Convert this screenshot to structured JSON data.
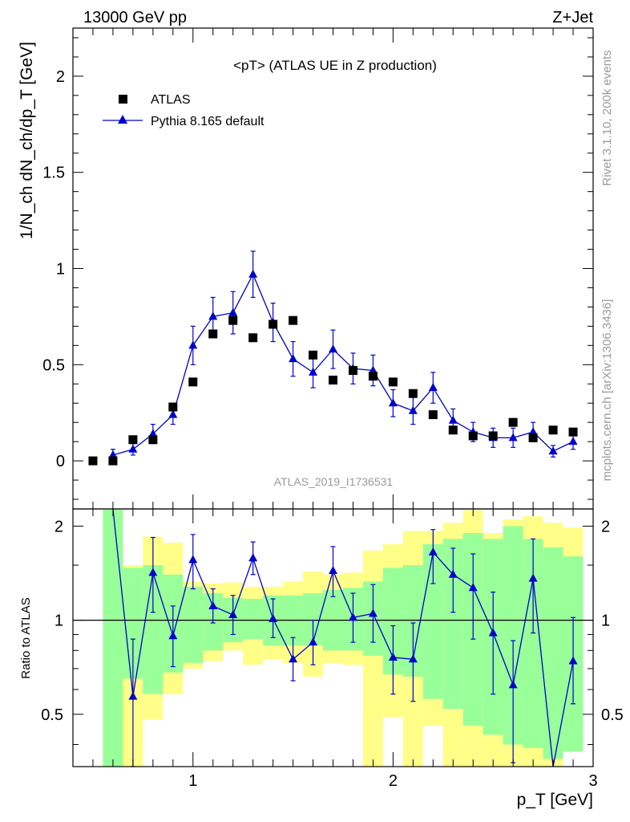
{
  "header": {
    "energy": "13000 GeV pp",
    "process": "Z+Jet"
  },
  "side_labels": {
    "rivet": "Rivet 3.1.10,  200k events",
    "mcplots": "mcplots.cern.ch [arXiv:1306.3436]"
  },
  "colors": {
    "mc": "#0000cc",
    "data": "#000000",
    "band_inner": "#99ff99",
    "band_outer": "#ffff88"
  },
  "chart_data": [
    {
      "type": "scatter",
      "title": "<pT> (ATLAS UE in Z production)",
      "analysis_id": "ATLAS_2019_I1736531",
      "ylabel": "1/N_ch dN_ch/dp_T [GeV]",
      "xlim": [
        0.4,
        3.0
      ],
      "ylim": [
        -0.25,
        2.25
      ],
      "yticks": [
        0,
        0.5,
        1,
        1.5,
        2
      ],
      "ytick_labels": [
        "0",
        "0.5",
        "1",
        "1.5",
        "2"
      ],
      "legend": {
        "placement": "top-left",
        "entries": [
          "ATLAS",
          "Pythia 8.165 default"
        ]
      },
      "series": [
        {
          "name": "ATLAS",
          "marker": "square",
          "x": [
            0.5,
            0.6,
            0.7,
            0.8,
            0.9,
            1.0,
            1.1,
            1.2,
            1.3,
            1.4,
            1.5,
            1.6,
            1.7,
            1.8,
            1.9,
            2.0,
            2.1,
            2.2,
            2.3,
            2.4,
            2.5,
            2.6,
            2.7,
            2.8,
            2.9
          ],
          "y": [
            0.0,
            0.0,
            0.11,
            0.11,
            0.28,
            0.41,
            0.66,
            0.73,
            0.64,
            0.71,
            0.73,
            0.55,
            0.42,
            0.47,
            0.44,
            0.41,
            0.35,
            0.24,
            0.16,
            0.13,
            0.13,
            0.2,
            0.12,
            0.16,
            0.15
          ]
        },
        {
          "name": "Pythia 8.165 default",
          "marker": "triangle",
          "x": [
            0.6,
            0.7,
            0.8,
            0.9,
            1.0,
            1.1,
            1.2,
            1.3,
            1.4,
            1.5,
            1.6,
            1.7,
            1.8,
            1.9,
            2.0,
            2.1,
            2.2,
            2.3,
            2.4,
            2.5,
            2.6,
            2.7,
            2.8,
            2.9
          ],
          "y": [
            0.03,
            0.06,
            0.14,
            0.24,
            0.6,
            0.75,
            0.77,
            0.97,
            0.72,
            0.53,
            0.46,
            0.58,
            0.48,
            0.47,
            0.3,
            0.26,
            0.38,
            0.21,
            0.15,
            0.12,
            0.12,
            0.15,
            0.05,
            0.1
          ],
          "err": [
            0.03,
            0.03,
            0.05,
            0.05,
            0.1,
            0.1,
            0.11,
            0.12,
            0.1,
            0.09,
            0.08,
            0.1,
            0.08,
            0.08,
            0.07,
            0.07,
            0.08,
            0.06,
            0.05,
            0.05,
            0.05,
            0.05,
            0.03,
            0.04
          ]
        }
      ]
    },
    {
      "type": "line",
      "ylabel": "Ratio to ATLAS",
      "xlabel": "p_T [GeV]",
      "xlim": [
        0.4,
        3.0
      ],
      "ylim": [
        0.34,
        2.27
      ],
      "yscale": "log",
      "yticks": [
        0.5,
        1,
        2
      ],
      "ytick_labels": [
        "0.5",
        "1",
        "2"
      ],
      "xticks": [
        1,
        2,
        3
      ],
      "xtick_labels": [
        "1",
        "2",
        "3"
      ],
      "reference_line": 1,
      "bands": {
        "edges": [
          0.55,
          0.65,
          0.75,
          0.85,
          0.95,
          1.05,
          1.15,
          1.25,
          1.35,
          1.45,
          1.55,
          1.65,
          1.75,
          1.85,
          1.95,
          2.05,
          2.15,
          2.25,
          2.35,
          2.45,
          2.55,
          2.65,
          2.75,
          2.85,
          2.95
        ],
        "inner_lo": [
          0.34,
          0.65,
          0.58,
          0.68,
          0.73,
          0.8,
          0.85,
          0.87,
          0.83,
          0.83,
          0.83,
          0.8,
          0.8,
          0.77,
          0.67,
          0.66,
          0.56,
          0.52,
          0.46,
          0.43,
          0.4,
          0.39,
          0.36,
          0.38
        ],
        "inner_hi": [
          2.27,
          1.47,
          1.5,
          1.4,
          1.28,
          1.22,
          1.18,
          1.17,
          1.2,
          1.2,
          1.22,
          1.25,
          1.27,
          1.33,
          1.47,
          1.5,
          1.75,
          1.82,
          1.9,
          1.82,
          2.0,
          1.82,
          1.71,
          1.6
        ],
        "outer_lo": [
          0.34,
          0.34,
          0.48,
          0.58,
          0.7,
          0.74,
          0.8,
          0.72,
          0.75,
          0.73,
          0.66,
          0.73,
          0.72,
          0.34,
          0.49,
          0.34,
          0.46,
          0.34,
          0.34,
          0.34,
          0.34,
          0.34,
          0.34,
          0.53
        ],
        "outer_hi": [
          2.27,
          1.5,
          1.85,
          1.77,
          1.33,
          1.31,
          1.32,
          1.28,
          1.28,
          1.33,
          1.43,
          1.4,
          1.42,
          1.67,
          1.75,
          1.93,
          1.93,
          2.05,
          2.25,
          1.9,
          2.1,
          2.15,
          2.05,
          1.98
        ]
      },
      "series": [
        {
          "name": "Pythia 8.165 default",
          "x": [
            0.6,
            0.7,
            0.8,
            0.9,
            1.0,
            1.1,
            1.2,
            1.3,
            1.4,
            1.5,
            1.6,
            1.7,
            1.8,
            1.9,
            2.0,
            2.1,
            2.2,
            2.3,
            2.4,
            2.5,
            2.6,
            2.7,
            2.8,
            2.9
          ],
          "y": [
            2.27,
            0.57,
            1.42,
            0.89,
            1.56,
            1.11,
            1.04,
            1.58,
            1.01,
            0.75,
            0.85,
            1.44,
            1.02,
            1.05,
            0.76,
            0.75,
            1.65,
            1.4,
            1.27,
            0.91,
            0.62,
            1.36,
            0.34,
            0.74
          ],
          "err_lo": [
            0.0,
            0.23,
            0.36,
            0.18,
            0.3,
            0.13,
            0.14,
            0.18,
            0.13,
            0.11,
            0.13,
            0.25,
            0.17,
            0.2,
            0.18,
            0.2,
            0.34,
            0.34,
            0.4,
            0.33,
            0.27,
            0.45,
            0.0,
            0.2
          ],
          "err_hi": [
            0.0,
            0.3,
            0.42,
            0.22,
            0.32,
            0.15,
            0.16,
            0.2,
            0.16,
            0.13,
            0.15,
            0.28,
            0.2,
            0.25,
            0.2,
            0.23,
            0.3,
            0.3,
            0.36,
            0.32,
            0.24,
            0.46,
            0.0,
            0.28
          ]
        }
      ]
    }
  ]
}
